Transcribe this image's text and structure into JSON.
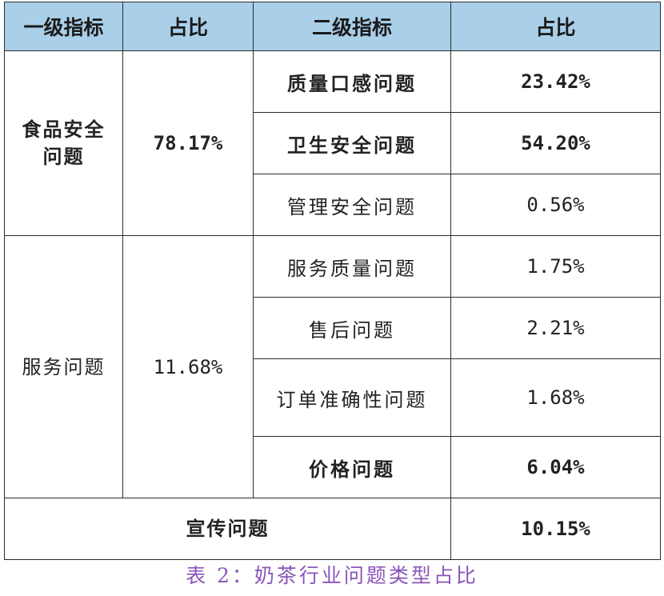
{
  "table": {
    "headers": [
      "一级指标",
      "占比",
      "二级指标",
      "占比"
    ],
    "food_safety": {
      "name_line1": "食品安全",
      "name_line2": "问题",
      "share": "78.17%",
      "items": [
        {
          "name": "质量口感问题",
          "value": "23.42%"
        },
        {
          "name": "卫生安全问题",
          "value": "54.20%"
        },
        {
          "name": "管理安全问题",
          "value": "0.56%"
        }
      ]
    },
    "service": {
      "name": "服务问题",
      "share": "11.68%",
      "items": [
        {
          "name": "服务质量问题",
          "value": "1.75%"
        },
        {
          "name": "售后问题",
          "value": "2.21%"
        },
        {
          "name": "订单准确性问题",
          "value": "1.68%"
        },
        {
          "name": "价格问题",
          "value": "6.04%"
        }
      ]
    },
    "promotion": {
      "name": "宣传问题",
      "value": "10.15%"
    }
  },
  "caption": "表 2：奶茶行业问题类型占比",
  "colors": {
    "header_bg": "#a9cfe9",
    "caption": "#8a55b8",
    "border": "#2b2b2b"
  }
}
